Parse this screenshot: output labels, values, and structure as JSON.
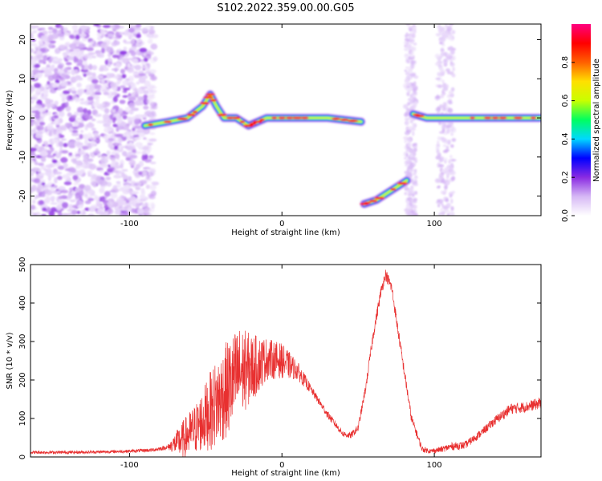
{
  "title": "S102.2022.359.00.00.G05",
  "colors": {
    "snr_line": "#e83030",
    "axis": "#000000",
    "background": "#ffffff"
  },
  "chart_data": [
    {
      "type": "heatmap",
      "xlabel": "Height of straight line (km)",
      "ylabel": "Frequency (Hz)",
      "xlim": [
        -165,
        170
      ],
      "ylim": [
        -25,
        24
      ],
      "x_ticks": [
        -100,
        0,
        100
      ],
      "y_ticks": [
        -20,
        -10,
        0,
        10,
        20
      ],
      "colorbar": {
        "label": "Normalized spectral amplitude",
        "range": [
          0,
          1
        ],
        "ticks": [
          "0.0",
          "0.2",
          "0.4",
          "0.6",
          "0.8"
        ],
        "colormap": [
          "#ffffff",
          "#d6b8f5",
          "#8a2be2",
          "#0000ff",
          "#00d8ff",
          "#00ff60",
          "#c8ff00",
          "#ffe000",
          "#ff6000",
          "#ff0000",
          "#ff0080"
        ]
      },
      "features": [
        {
          "name": "noise",
          "x_range": [
            -165,
            -83
          ],
          "f_range": [
            -25,
            24
          ]
        },
        {
          "name": "track",
          "points": [
            [
              -90,
              -2
            ],
            [
              -75,
              -1
            ],
            [
              -62,
              0
            ],
            [
              -52,
              3
            ],
            [
              -47,
              6
            ],
            [
              -43,
              3
            ],
            [
              -38,
              0
            ],
            [
              -30,
              0
            ],
            [
              -22,
              -2
            ],
            [
              -10,
              0
            ],
            [
              10,
              0
            ],
            [
              30,
              0
            ],
            [
              52,
              -1
            ]
          ]
        },
        {
          "name": "track",
          "points": [
            [
              54,
              -22
            ],
            [
              62,
              -21
            ],
            [
              70,
              -19
            ],
            [
              82,
              -16
            ]
          ]
        },
        {
          "name": "stripe",
          "x_range": [
            81,
            88
          ],
          "f_range": [
            -25,
            24
          ]
        },
        {
          "name": "stripe",
          "x_range": [
            102,
            113
          ],
          "f_range": [
            -25,
            24
          ]
        },
        {
          "name": "track",
          "points": [
            [
              86,
              1
            ],
            [
              95,
              0
            ],
            [
              110,
              0
            ],
            [
              130,
              0
            ],
            [
              150,
              0
            ],
            [
              170,
              0
            ]
          ]
        }
      ]
    },
    {
      "type": "line",
      "xlabel": "Height of straight line (km)",
      "ylabel": "SNR (10 * v/v)",
      "xlim": [
        -165,
        170
      ],
      "ylim": [
        0,
        500
      ],
      "x_ticks": [
        -100,
        0,
        100
      ],
      "y_ticks": [
        0,
        100,
        200,
        300,
        400,
        500
      ],
      "series": [
        {
          "color": "#e83030",
          "x": [
            -165,
            -140,
            -120,
            -100,
            -85,
            -75,
            -65,
            -55,
            -45,
            -35,
            -28,
            -20,
            -10,
            0,
            10,
            20,
            30,
            40,
            45,
            50,
            55,
            60,
            65,
            68,
            72,
            78,
            85,
            92,
            98,
            105,
            112,
            120,
            130,
            140,
            150,
            160,
            170
          ],
          "values": [
            12,
            12,
            13,
            15,
            18,
            25,
            45,
            80,
            130,
            180,
            220,
            230,
            255,
            250,
            225,
            170,
            110,
            60,
            55,
            75,
            180,
            320,
            430,
            475,
            440,
            280,
            100,
            20,
            15,
            20,
            28,
            30,
            60,
            95,
            125,
            130,
            140
          ],
          "amplitude": [
            4,
            4,
            4,
            4,
            5,
            6,
            50,
            70,
            110,
            130,
            120,
            90,
            55,
            45,
            25,
            10,
            10,
            8,
            8,
            10,
            12,
            15,
            15,
            15,
            15,
            15,
            12,
            8,
            6,
            8,
            10,
            10,
            10,
            12,
            14,
            14,
            15
          ]
        }
      ]
    }
  ]
}
